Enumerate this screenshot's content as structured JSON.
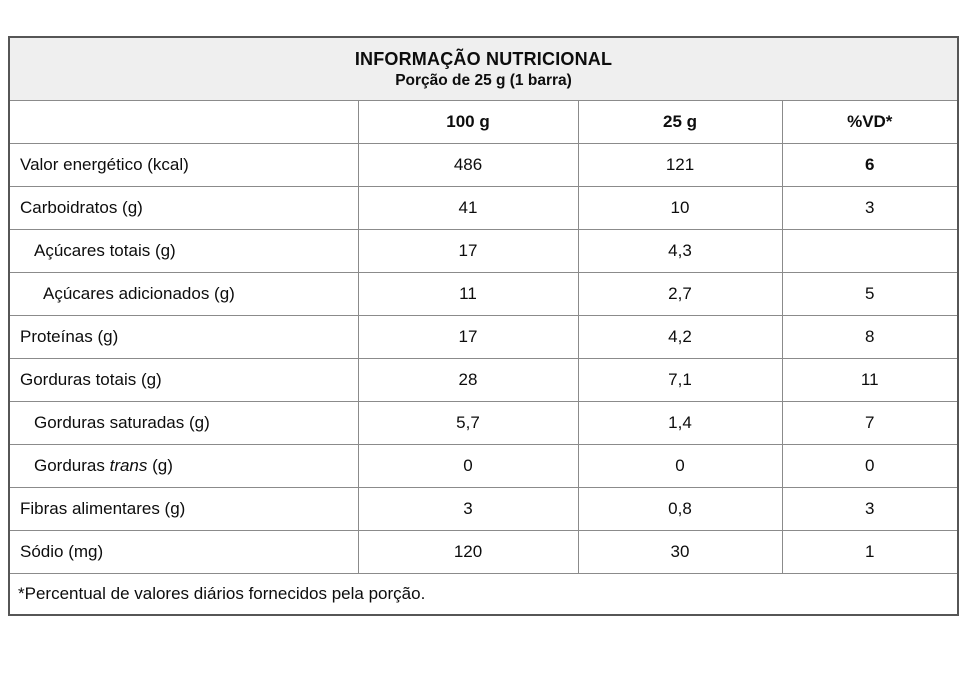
{
  "table": {
    "title": "INFORMAÇÃO NUTRICIONAL",
    "subtitle": "Porção de 25 g (1 barra)",
    "columns": [
      "",
      "100 g",
      "25 g",
      "%VD*"
    ],
    "rows": [
      {
        "name": "valor-energetico",
        "indent": 0,
        "label": [
          {
            "text": "Valor energético (kcal)"
          }
        ],
        "per100": "486",
        "per25": "121",
        "vd": "6",
        "vd_bold": true
      },
      {
        "name": "carboidratos",
        "indent": 0,
        "label": [
          {
            "text": "Carboidratos (g)"
          }
        ],
        "per100": "41",
        "per25": "10",
        "vd": "3",
        "vd_bold": false
      },
      {
        "name": "acucares-totais",
        "indent": 1,
        "label": [
          {
            "text": "Açúcares totais (g)"
          }
        ],
        "per100": "17",
        "per25": "4,3",
        "vd": "",
        "vd_bold": false
      },
      {
        "name": "acucares-adicionados",
        "indent": 2,
        "label": [
          {
            "text": "Açúcares adicionados (g)"
          }
        ],
        "per100": "11",
        "per25": "2,7",
        "vd": "5",
        "vd_bold": false
      },
      {
        "name": "proteinas",
        "indent": 0,
        "label": [
          {
            "text": "Proteínas (g)"
          }
        ],
        "per100": "17",
        "per25": "4,2",
        "vd": "8",
        "vd_bold": false
      },
      {
        "name": "gorduras-totais",
        "indent": 0,
        "label": [
          {
            "text": "Gorduras totais (g)"
          }
        ],
        "per100": "28",
        "per25": "7,1",
        "vd": "11",
        "vd_bold": false
      },
      {
        "name": "gorduras-saturadas",
        "indent": 1,
        "label": [
          {
            "text": "Gorduras saturadas (g)"
          }
        ],
        "per100": "5,7",
        "per25": "1,4",
        "vd": "7",
        "vd_bold": false
      },
      {
        "name": "gorduras-trans",
        "indent": 1,
        "label": [
          {
            "text": "Gorduras "
          },
          {
            "text": "trans",
            "italic": true
          },
          {
            "text": " (g)"
          }
        ],
        "per100": "0",
        "per25": "0",
        "vd": "0",
        "vd_bold": false
      },
      {
        "name": "fibras-alimentares",
        "indent": 0,
        "label": [
          {
            "text": "Fibras alimentares (g)"
          }
        ],
        "per100": "3",
        "per25": "0,8",
        "vd": "3",
        "vd_bold": false
      },
      {
        "name": "sodio",
        "indent": 0,
        "label": [
          {
            "text": "Sódio (mg)"
          }
        ],
        "per100": "120",
        "per25": "30",
        "vd": "1",
        "vd_bold": false
      }
    ],
    "footnote": "*Percentual de valores diários fornecidos pela porção.",
    "colors": {
      "header_band_bg": "#efefef",
      "outer_border": "#565656",
      "inner_border": "#8b8b8b",
      "text": "#0d0d0d"
    }
  }
}
